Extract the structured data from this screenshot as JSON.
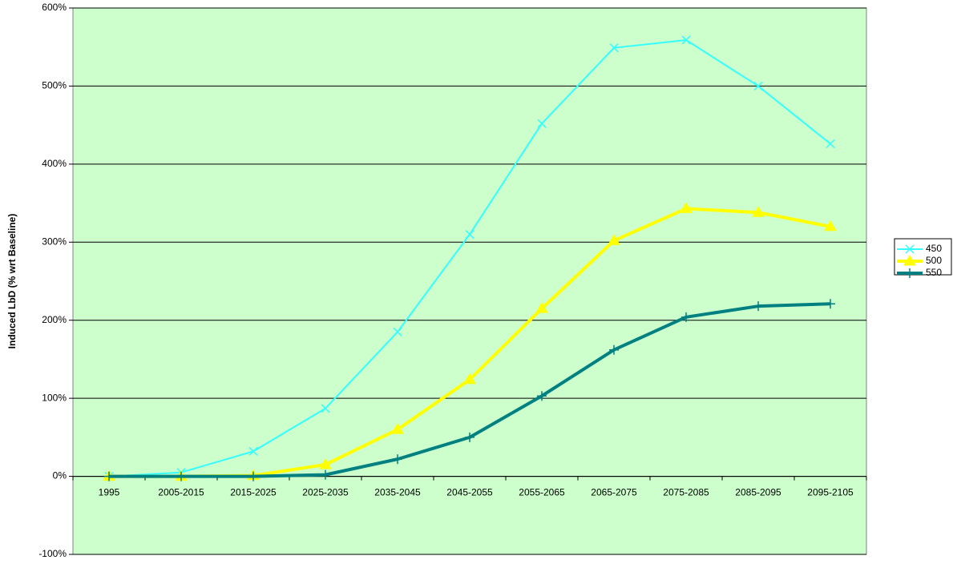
{
  "chart_data": {
    "type": "line",
    "y_label": "Induced LbD (% wrt Baseline)",
    "categories": [
      "1995",
      "2005-2015",
      "2015-2025",
      "2025-2035",
      "2035-2045",
      "2045-2055",
      "2055-2065",
      "2065-2075",
      "2075-2085",
      "2085-2095",
      "2095-2105"
    ],
    "series": [
      {
        "name": "450",
        "color": "#33ffff",
        "marker": "x",
        "values": [
          0,
          5,
          32,
          87,
          185,
          310,
          452,
          549,
          559,
          500,
          426
        ]
      },
      {
        "name": "500",
        "color": "#ffff00",
        "marker": "triangle",
        "values": [
          0,
          0,
          1,
          15,
          60,
          124,
          215,
          302,
          343,
          338,
          320
        ]
      },
      {
        "name": "550",
        "color": "#008080",
        "marker": "plus",
        "values": [
          0,
          0,
          0,
          2,
          22,
          50,
          103,
          162,
          204,
          218,
          221
        ]
      }
    ],
    "ylim": [
      -100,
      600
    ],
    "yticks": [
      {
        "value": -100,
        "label": "-100%"
      },
      {
        "value": 0,
        "label": "0%"
      },
      {
        "value": 100,
        "label": "100%"
      },
      {
        "value": 200,
        "label": "200%"
      },
      {
        "value": 300,
        "label": "300%"
      },
      {
        "value": 400,
        "label": "400%"
      },
      {
        "value": 500,
        "label": "500%"
      },
      {
        "value": 600,
        "label": "600%"
      }
    ],
    "grid": true,
    "legend": "right",
    "background": "#ccffcc"
  }
}
